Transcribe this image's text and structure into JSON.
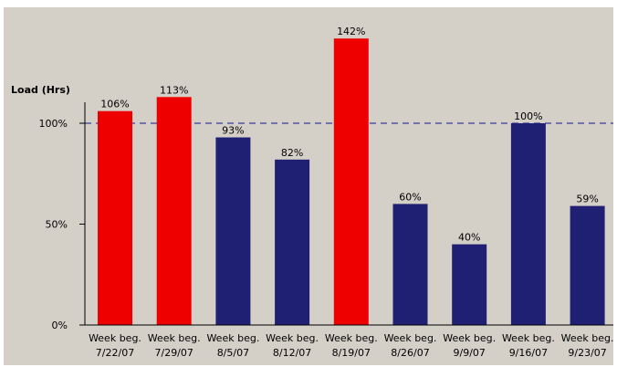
{
  "colors": {
    "plot_background": "#d4d0c8",
    "over_capacity_bar": "#ee0000",
    "normal_bar": "#1f1f73",
    "reference_line": "#3a3a9a",
    "axis": "#000000"
  },
  "chart_data": {
    "type": "bar",
    "title": "",
    "xlabel": "",
    "ylabel": "Load (Hrs)",
    "ylim": [
      0,
      100
    ],
    "y_ticks": [
      {
        "value": 0,
        "label": "0%"
      },
      {
        "value": 50,
        "label": "50%"
      },
      {
        "value": 100,
        "label": "100%"
      }
    ],
    "reference_line": {
      "value": 100,
      "style": "dashed"
    },
    "grid": false,
    "legend": "none",
    "categories": [
      {
        "line1": "Week beg.",
        "line2": "7/22/07"
      },
      {
        "line1": "Week beg.",
        "line2": "7/29/07"
      },
      {
        "line1": "Week beg.",
        "line2": "8/5/07"
      },
      {
        "line1": "Week beg.",
        "line2": "8/12/07"
      },
      {
        "line1": "Week beg.",
        "line2": "8/19/07"
      },
      {
        "line1": "Week beg.",
        "line2": "8/26/07"
      },
      {
        "line1": "Week beg.",
        "line2": "9/9/07"
      },
      {
        "line1": "Week beg.",
        "line2": "9/16/07"
      },
      {
        "line1": "Week beg.",
        "line2": "9/23/07"
      }
    ],
    "values": [
      106,
      113,
      93,
      82,
      142,
      60,
      40,
      100,
      59
    ],
    "value_labels": [
      "106%",
      "113%",
      "93%",
      "82%",
      "142%",
      "60%",
      "40%",
      "100%",
      "59%"
    ],
    "over_capacity": [
      true,
      true,
      false,
      false,
      true,
      false,
      false,
      false,
      false
    ]
  }
}
